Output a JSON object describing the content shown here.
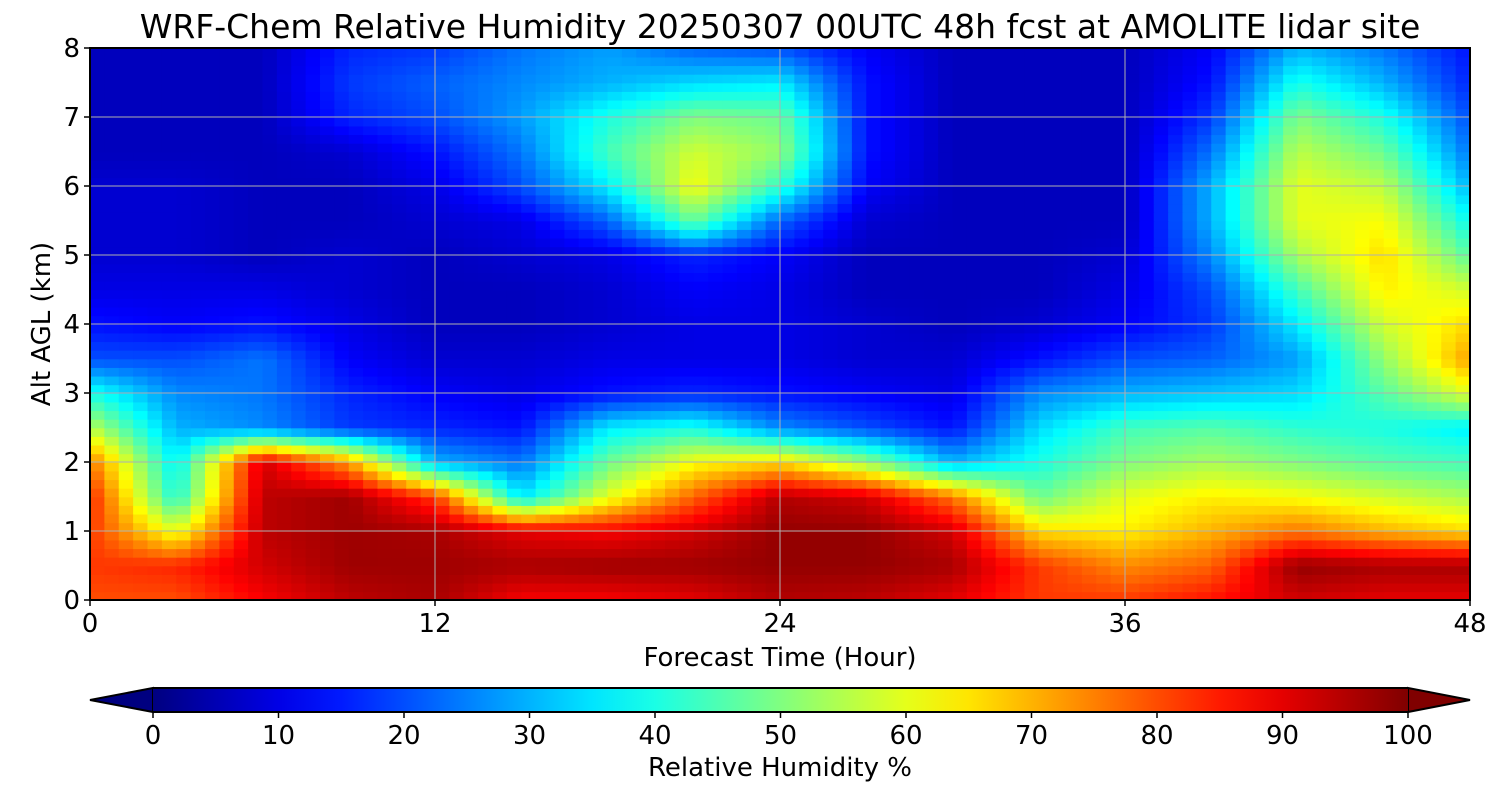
{
  "chart_data": {
    "type": "heatmap",
    "title": "WRF-Chem Relative Humidity 20250307 00UTC 48h fcst at AMOLITE lidar site",
    "xlabel": "Forecast Time (Hour)",
    "ylabel": "Alt AGL (km)",
    "xlim": [
      0,
      48
    ],
    "ylim": [
      0,
      8
    ],
    "xticks": [
      "0",
      "12",
      "24",
      "36",
      "48"
    ],
    "yticks": [
      "0",
      "1",
      "2",
      "3",
      "4",
      "5",
      "6",
      "7",
      "8"
    ],
    "grid": true,
    "colormap": "jet",
    "colorbar": {
      "label": "Relative Humidity %",
      "range": [
        0,
        100
      ],
      "ticks": [
        "0",
        "10",
        "20",
        "30",
        "40",
        "50",
        "60",
        "70",
        "80",
        "90",
        "100"
      ],
      "extend": "both",
      "orientation": "horizontal"
    },
    "x": [
      0,
      3,
      6,
      9,
      12,
      15,
      18,
      21,
      24,
      27,
      30,
      33,
      36,
      39,
      42,
      45,
      48
    ],
    "y": [
      0,
      0.5,
      1,
      1.5,
      2,
      2.5,
      3,
      3.5,
      4,
      4.5,
      5,
      5.5,
      6,
      6.5,
      7,
      7.5,
      8
    ],
    "z": [
      [
        80,
        80,
        88,
        94,
        96,
        88,
        88,
        90,
        95,
        94,
        90,
        82,
        82,
        86,
        92,
        90,
        90
      ],
      [
        82,
        84,
        92,
        97,
        97,
        96,
        97,
        97,
        98,
        98,
        96,
        82,
        74,
        78,
        98,
        96,
        96
      ],
      [
        82,
        60,
        94,
        97,
        96,
        90,
        88,
        92,
        98,
        98,
        92,
        66,
        64,
        70,
        76,
        70,
        66
      ],
      [
        84,
        40,
        94,
        97,
        82,
        35,
        60,
        78,
        95,
        92,
        76,
        48,
        60,
        64,
        62,
        58,
        54
      ],
      [
        76,
        36,
        92,
        72,
        30,
        24,
        48,
        62,
        66,
        52,
        30,
        40,
        50,
        54,
        50,
        46,
        44
      ],
      [
        56,
        30,
        26,
        18,
        16,
        14,
        36,
        40,
        26,
        20,
        14,
        34,
        44,
        46,
        42,
        40,
        36
      ],
      [
        40,
        26,
        24,
        16,
        12,
        10,
        14,
        16,
        14,
        12,
        10,
        26,
        30,
        32,
        34,
        46,
        60
      ],
      [
        20,
        20,
        24,
        12,
        8,
        8,
        10,
        10,
        10,
        8,
        8,
        14,
        20,
        22,
        28,
        52,
        72
      ],
      [
        14,
        12,
        14,
        10,
        6,
        6,
        8,
        10,
        10,
        8,
        6,
        8,
        12,
        18,
        36,
        58,
        66
      ],
      [
        10,
        10,
        10,
        8,
        6,
        6,
        8,
        12,
        10,
        6,
        6,
        6,
        10,
        20,
        44,
        64,
        58
      ],
      [
        8,
        8,
        6,
        8,
        6,
        8,
        10,
        16,
        12,
        6,
        6,
        6,
        8,
        26,
        54,
        66,
        46
      ],
      [
        8,
        8,
        6,
        6,
        8,
        10,
        22,
        48,
        22,
        8,
        6,
        6,
        6,
        30,
        60,
        62,
        38
      ],
      [
        8,
        8,
        6,
        6,
        10,
        20,
        36,
        62,
        42,
        12,
        6,
        6,
        6,
        30,
        60,
        56,
        30
      ],
      [
        6,
        6,
        6,
        8,
        14,
        24,
        44,
        58,
        52,
        14,
        6,
        6,
        6,
        24,
        56,
        48,
        24
      ],
      [
        6,
        6,
        6,
        16,
        20,
        28,
        40,
        50,
        48,
        14,
        6,
        6,
        6,
        18,
        50,
        40,
        20
      ],
      [
        6,
        6,
        6,
        18,
        22,
        26,
        30,
        34,
        36,
        14,
        6,
        6,
        6,
        14,
        40,
        30,
        16
      ],
      [
        6,
        6,
        6,
        16,
        18,
        24,
        28,
        22,
        20,
        12,
        6,
        6,
        6,
        12,
        30,
        24,
        14
      ]
    ]
  }
}
